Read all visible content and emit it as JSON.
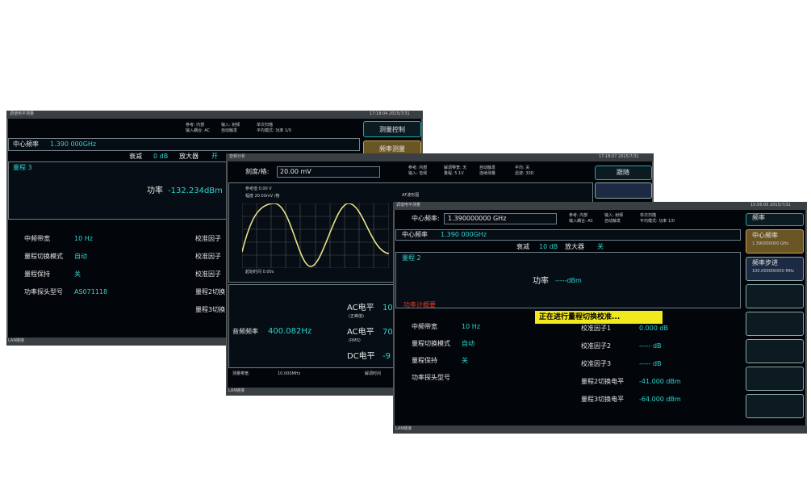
{
  "windows": [
    {
      "title": "调谐电平测量",
      "time": "17:18:04  2015/7/31",
      "header": [
        "参考: 内部",
        "输入耦合: AC",
        "输入: 射频",
        "自动触发",
        "单次扫描",
        "平均模式: 功率 1/0"
      ],
      "center_freq_label": "中心频率",
      "center_freq": "1.390 000GHz",
      "atten_label": "衰减",
      "atten": "0 dB",
      "amp_label": "放大器",
      "amp": "开",
      "range": "量程 3",
      "power_label": "功率",
      "power": "-132.234dBm",
      "buttons": [
        "测量控制",
        "频率测量"
      ],
      "params": [
        [
          "中频带宽",
          "10 Hz"
        ],
        [
          "量程切换模式",
          "自动"
        ],
        [
          "量程保持",
          "关"
        ],
        [
          "功率探头型号",
          "AS071118"
        ]
      ],
      "params_right": [
        "校准因子",
        "校准因子",
        "校准因子",
        "量程2切换",
        "量程3切换"
      ],
      "status": "LAN链接"
    },
    {
      "title": "音频分析",
      "time": "17:18:07  2015/7/31",
      "scale_label": "刻度/格:",
      "scale": "20.00 mV",
      "header": [
        "参考: 内部",
        "输入: 音频",
        "解调带宽: 无",
        "量程: 5.1V",
        "自动触发",
        "连续测量",
        "平均: 关",
        "滤波: 30D"
      ],
      "buttons": [
        "跟随"
      ],
      "ref_level": "参考值 0.00 V",
      "amplitude": "幅度 20.00mV /格",
      "plot_title": "AF波形图",
      "start_time": "起始时间 0.00s",
      "audio_freq_label": "音频频率",
      "audio_freq": "400.082Hz",
      "ac_peak_label": "AC电平",
      "ac_peak_sub": "(正峰值)",
      "ac_peak": "10",
      "ac_rms_label": "AC电平",
      "ac_rms_sub": "(RMS)",
      "ac_rms": "70",
      "dc_label": "DC电平",
      "dc": "-9",
      "meas_bw_label": "测量带宽:",
      "meas_bw": "10.000MHz",
      "demod_label": "解调时间",
      "status": "LAN链接"
    },
    {
      "title": "调谐电平测量",
      "time": "15:56:05  2015/7/31",
      "cf_input_label": "中心频率:",
      "cf_input": "1.390000000 GHz",
      "header": [
        "参考: 内部",
        "输入耦合: AC",
        "输入: 射频",
        "自动触发",
        "单次扫描",
        "平均模式: 功率 1/0"
      ],
      "center_freq_label": "中心频率",
      "center_freq": "1.390 000GHz",
      "atten_label": "衰减",
      "atten": "10 dB",
      "amp_label": "放大器",
      "amp": "关",
      "range": "量程 2",
      "power_label": "功率",
      "power": "-----dBm",
      "summary": "功率计概要",
      "banner": "正在进行量程切换校准...",
      "params": [
        [
          "中频带宽",
          "10 Hz"
        ],
        [
          "量程切换模式",
          "自动"
        ],
        [
          "量程保持",
          "关"
        ],
        [
          "功率探头型号",
          ""
        ]
      ],
      "params_right": [
        [
          "校准因子1",
          "0.000 dB"
        ],
        [
          "校准因子2",
          "----- dB"
        ],
        [
          "校准因子3",
          "----- dB"
        ],
        [
          "量程2切换电平",
          "-41.000 dBm"
        ],
        [
          "量程3切换电平",
          "-64.000 dBm"
        ]
      ],
      "buttons": [
        [
          "频率"
        ],
        [
          "中心频率",
          "1.390000000 GHz"
        ],
        [
          "频率步进",
          "100.000000000 MHz"
        ]
      ],
      "status": "LAN链接"
    }
  ]
}
